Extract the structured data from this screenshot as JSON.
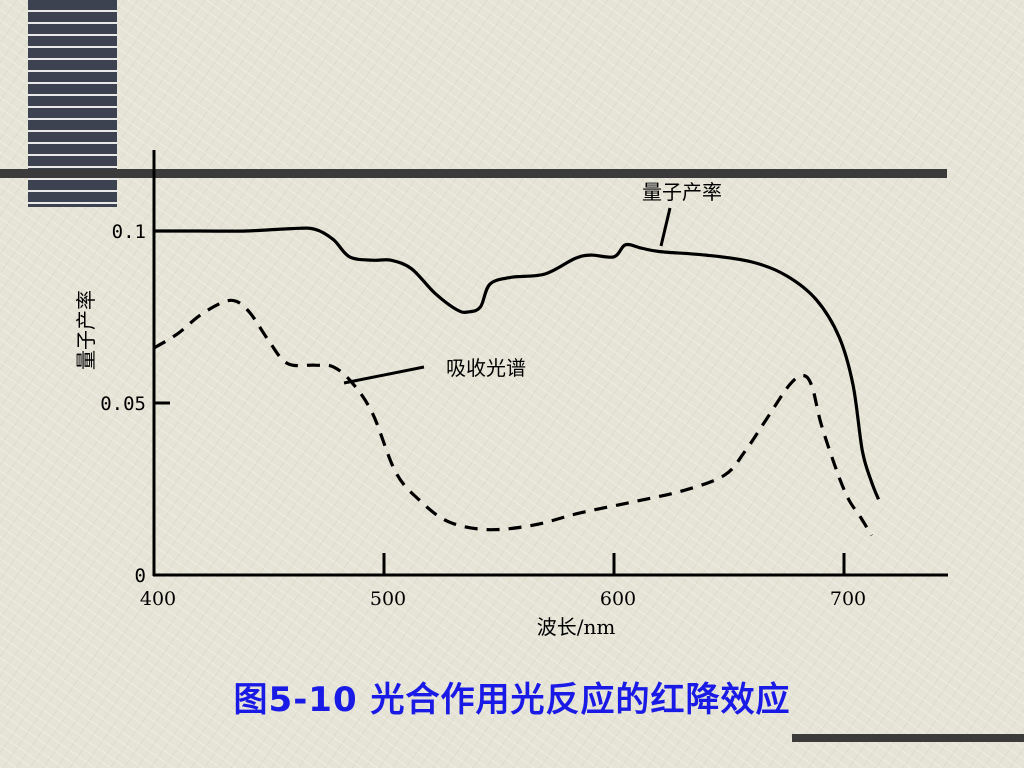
{
  "chart_data": {
    "type": "line",
    "xlabel": "波长/nm",
    "ylabel": "量子产率",
    "xlim": [
      400,
      750
    ],
    "ylim": [
      0,
      0.12
    ],
    "x_ticks": [
      {
        "value": 400,
        "label": "400"
      },
      {
        "value": 500,
        "label": "500"
      },
      {
        "value": 600,
        "label": "600"
      },
      {
        "value": 700,
        "label": "700"
      }
    ],
    "y_ticks": [
      {
        "value": 0,
        "label": "0"
      },
      {
        "value": 0.05,
        "label": "0.05"
      },
      {
        "value": 0.1,
        "label": "0.1"
      }
    ],
    "series": [
      {
        "name": "量子产率",
        "style": "solid",
        "color": "#000000",
        "points": [
          [
            400,
            0.1
          ],
          [
            420,
            0.1
          ],
          [
            440,
            0.1
          ],
          [
            460,
            0.1007
          ],
          [
            470,
            0.1005
          ],
          [
            478,
            0.0975
          ],
          [
            485,
            0.0925
          ],
          [
            495,
            0.0915
          ],
          [
            503,
            0.0915
          ],
          [
            512,
            0.089
          ],
          [
            522,
            0.082
          ],
          [
            532,
            0.077
          ],
          [
            537,
            0.0765
          ],
          [
            542,
            0.078
          ],
          [
            546,
            0.0845
          ],
          [
            555,
            0.0865
          ],
          [
            570,
            0.0875
          ],
          [
            583,
            0.092
          ],
          [
            590,
            0.093
          ],
          [
            600,
            0.0925
          ],
          [
            605,
            0.096
          ],
          [
            612,
            0.095
          ],
          [
            620,
            0.094
          ],
          [
            640,
            0.093
          ],
          [
            660,
            0.091
          ],
          [
            675,
            0.087
          ],
          [
            688,
            0.08
          ],
          [
            698,
            0.069
          ],
          [
            704,
            0.055
          ],
          [
            708,
            0.036
          ],
          [
            712,
            0.027
          ],
          [
            715,
            0.022
          ]
        ]
      },
      {
        "name": "吸收光谱",
        "style": "dashed",
        "color": "#000000",
        "points": [
          [
            400,
            0.066
          ],
          [
            410,
            0.07
          ],
          [
            420,
            0.0755
          ],
          [
            430,
            0.0793
          ],
          [
            436,
            0.0795
          ],
          [
            442,
            0.076
          ],
          [
            450,
            0.068
          ],
          [
            458,
            0.0615
          ],
          [
            470,
            0.061
          ],
          [
            478,
            0.0605
          ],
          [
            486,
            0.056
          ],
          [
            495,
            0.047
          ],
          [
            505,
            0.03
          ],
          [
            515,
            0.022
          ],
          [
            528,
            0.0155
          ],
          [
            545,
            0.0132
          ],
          [
            565,
            0.0145
          ],
          [
            585,
            0.018
          ],
          [
            610,
            0.0215
          ],
          [
            630,
            0.0245
          ],
          [
            648,
            0.029
          ],
          [
            657,
            0.036
          ],
          [
            666,
            0.045
          ],
          [
            676,
            0.055
          ],
          [
            682,
            0.058
          ],
          [
            686,
            0.055
          ],
          [
            690,
            0.044
          ],
          [
            697,
            0.03
          ],
          [
            702,
            0.022
          ],
          [
            707,
            0.017
          ],
          [
            712,
            0.0115
          ]
        ]
      }
    ],
    "annotations": [
      {
        "text": "量子产率",
        "target": "量子产率"
      },
      {
        "text": "吸收光谱",
        "target": "吸收光谱"
      }
    ]
  },
  "caption": "图5-10  光合作用光反应的红降效应"
}
